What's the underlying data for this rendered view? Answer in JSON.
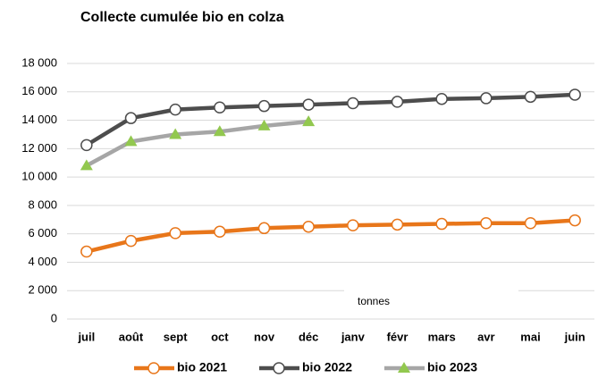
{
  "chart_data": {
    "type": "line",
    "title": "Collecte cumulée bio en colza",
    "annotation": "tonnes",
    "categories": [
      "juil",
      "août",
      "sept",
      "oct",
      "nov",
      "déc",
      "janv",
      "févr",
      "mars",
      "avr",
      "mai",
      "juin"
    ],
    "series": [
      {
        "name": "bio 2021",
        "color": "#e8761a",
        "marker": "circle",
        "values": [
          4750,
          5500,
          6050,
          6150,
          6400,
          6500,
          6600,
          6650,
          6700,
          6750,
          6750,
          6950
        ]
      },
      {
        "name": "bio 2022",
        "color": "#4d4d4d",
        "marker": "circle",
        "values": [
          12250,
          14150,
          14750,
          14900,
          15000,
          15100,
          15200,
          15300,
          15500,
          15550,
          15650,
          15800
        ]
      },
      {
        "name": "bio 2023",
        "color": "#a6a6a6",
        "marker": "triangle",
        "marker_color": "#92c84f",
        "values": [
          10800,
          12500,
          13000,
          13200,
          13600,
          13900,
          null,
          null,
          null,
          null,
          null,
          null
        ]
      }
    ],
    "ylim": [
      0,
      18000
    ],
    "yticks": [
      0,
      {
        "value": 2000,
        "label": "2 000"
      },
      {
        "value": 4000,
        "label": "4 000"
      },
      {
        "value": 6000,
        "label": "6 000"
      },
      {
        "value": 8000,
        "label": "8 000"
      },
      {
        "value": 10000,
        "label": "10 000"
      },
      {
        "value": 12000,
        "label": "12 000"
      },
      {
        "value": 14000,
        "label": "14 000"
      },
      {
        "value": 16000,
        "label": "16 000"
      },
      {
        "value": 18000,
        "label": "18 000"
      }
    ],
    "grid": true,
    "legend": "bottom"
  }
}
